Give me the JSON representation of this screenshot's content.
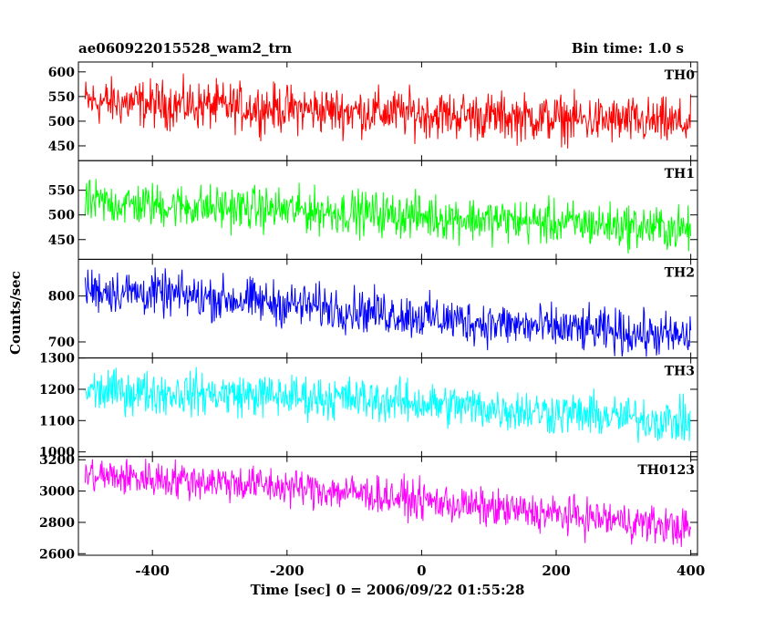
{
  "header": {
    "observation_id": "ae060922015528_wam2_trn",
    "bin_time": "Bin time: 1.0 s"
  },
  "chart_data": {
    "type": "line",
    "xlabel": "Time [sec] 0 = 2006/09/22 01:55:28",
    "ylabel": "Counts/sec",
    "xlim": [
      -510,
      410
    ],
    "xticks": [
      -400,
      -200,
      0,
      200,
      400
    ],
    "panels": [
      {
        "name": "TH0",
        "color": "#ff0000",
        "ylim": [
          420,
          620
        ],
        "yticks": [
          450,
          500,
          550,
          600
        ],
        "trend": [
          [
            -500,
            540
          ],
          [
            -300,
            530
          ],
          [
            -100,
            520
          ],
          [
            100,
            510
          ],
          [
            300,
            500
          ],
          [
            400,
            495
          ]
        ],
        "noise": 28
      },
      {
        "name": "TH1",
        "color": "#00ff00",
        "ylim": [
          410,
          610
        ],
        "yticks": [
          450,
          500,
          550
        ],
        "trend": [
          [
            -500,
            525
          ],
          [
            -300,
            515
          ],
          [
            -100,
            505
          ],
          [
            100,
            490
          ],
          [
            300,
            478
          ],
          [
            400,
            470
          ]
        ],
        "noise": 26
      },
      {
        "name": "TH2",
        "color": "#0000ff",
        "ylim": [
          665,
          880
        ],
        "yticks": [
          700,
          800
        ],
        "trend": [
          [
            -500,
            815
          ],
          [
            -300,
            795
          ],
          [
            -100,
            770
          ],
          [
            100,
            740
          ],
          [
            300,
            720
          ],
          [
            400,
            710
          ]
        ],
        "noise": 28
      },
      {
        "name": "TH3",
        "color": "#00ffff",
        "ylim": [
          985,
          1300
        ],
        "yticks": [
          1000,
          1100,
          1200,
          1300
        ],
        "trend": [
          [
            -500,
            1195
          ],
          [
            -300,
            1185
          ],
          [
            -100,
            1170
          ],
          [
            100,
            1140
          ],
          [
            300,
            1110
          ],
          [
            400,
            1095
          ]
        ],
        "noise": 40
      },
      {
        "name": "TH0123",
        "color": "#ff00ff",
        "ylim": [
          2590,
          3220
        ],
        "yticks": [
          2600,
          2800,
          3000,
          3200
        ],
        "trend": [
          [
            -500,
            3100
          ],
          [
            -300,
            3060
          ],
          [
            -100,
            2990
          ],
          [
            100,
            2890
          ],
          [
            300,
            2810
          ],
          [
            400,
            2760
          ]
        ],
        "noise": 70
      }
    ]
  }
}
